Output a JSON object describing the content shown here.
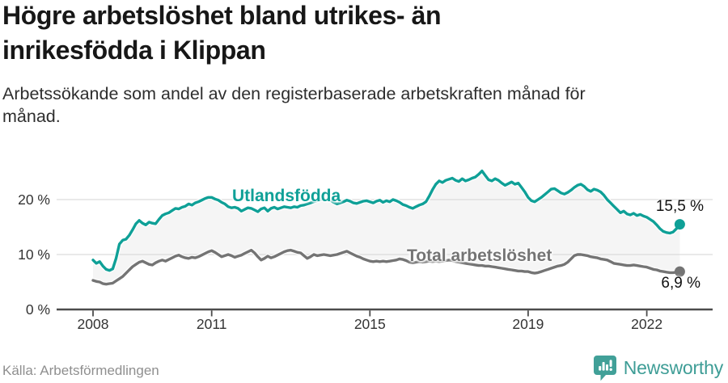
{
  "header": {
    "title": "Högre arbetslöshet bland utrikes- än\ninrikesfödda i Klippan",
    "subtitle": "Arbetssökande som andel av den registerbaserade arbetskraften månad för\nmånad."
  },
  "footer": {
    "source": "Källa: Arbetsförmedlingen",
    "brand": "Newsworthy"
  },
  "chart_data": {
    "type": "line",
    "title": "Högre arbetslöshet bland utrikes- än inrikesfödda i Klippan",
    "subtitle": "Arbetssökande som andel av den registerbaserade arbetskraften månad för månad.",
    "frequency": "monthly",
    "x_start": "2008-01",
    "x_end": "2022-11",
    "x_tick_years": [
      2008,
      2011,
      2015,
      2019,
      2022
    ],
    "x_tick_labels": [
      "2008",
      "2011",
      "2015",
      "2019",
      "2022"
    ],
    "y_tick_labels": [
      "20 %",
      "10 %",
      "0 %"
    ],
    "y_tick_values": [
      20,
      10,
      0
    ],
    "ylim": [
      0,
      27.5
    ],
    "grid": "horizontal-only",
    "legend": "inline-labels",
    "fill_between_color": "#f5f5f5",
    "grid_color": "#dcdcdc",
    "axis_color": "#4c4c4c",
    "series": [
      {
        "name": "Utlandsfödda",
        "color": "#0fa097",
        "end_label": "15,5 %",
        "end_value": 15.5,
        "values": [
          9.0,
          8.4,
          8.7,
          7.9,
          7.3,
          7.1,
          7.4,
          9.3,
          11.9,
          12.6,
          12.8,
          13.5,
          14.5,
          15.6,
          16.2,
          15.7,
          15.4,
          15.9,
          15.7,
          15.6,
          16.4,
          17.1,
          17.4,
          17.6,
          18.0,
          18.4,
          18.3,
          18.6,
          18.8,
          19.2,
          19.0,
          19.4,
          19.6,
          19.9,
          20.2,
          20.4,
          20.4,
          20.1,
          19.9,
          19.5,
          19.2,
          18.7,
          18.5,
          18.6,
          18.4,
          17.9,
          18.2,
          18.5,
          18.4,
          18.1,
          17.8,
          18.3,
          18.5,
          17.9,
          18.4,
          18.6,
          18.3,
          18.5,
          18.7,
          18.6,
          18.5,
          18.7,
          18.6,
          18.9,
          19.0,
          19.2,
          19.4,
          19.6,
          19.8,
          20.0,
          20.2,
          20.0,
          19.9,
          19.5,
          19.2,
          19.4,
          19.6,
          19.9,
          19.7,
          19.4,
          19.3,
          19.5,
          19.7,
          19.8,
          19.6,
          19.4,
          19.7,
          19.9,
          19.5,
          19.8,
          19.6,
          20.0,
          19.8,
          19.5,
          19.1,
          18.9,
          18.6,
          18.4,
          18.7,
          19.0,
          19.2,
          19.6,
          20.6,
          21.8,
          22.8,
          23.4,
          23.1,
          23.5,
          23.7,
          23.9,
          23.5,
          23.3,
          23.8,
          23.4,
          23.6,
          23.9,
          24.1,
          24.6,
          25.2,
          24.4,
          23.6,
          23.4,
          23.8,
          23.5,
          23.0,
          22.6,
          22.9,
          23.2,
          22.8,
          23.0,
          22.2,
          21.4,
          20.4,
          19.8,
          19.6,
          20.0,
          20.4,
          20.9,
          21.4,
          21.9,
          22.0,
          21.6,
          21.2,
          21.0,
          21.3,
          21.7,
          22.2,
          22.6,
          22.8,
          22.4,
          21.8,
          21.5,
          21.9,
          21.7,
          21.4,
          20.8,
          20.0,
          19.4,
          18.8,
          18.2,
          17.6,
          17.9,
          17.4,
          17.2,
          17.5,
          17.1,
          17.3,
          17.0,
          16.8,
          16.4,
          16.0,
          15.4,
          14.7,
          14.2,
          14.0,
          13.9,
          14.1,
          14.7,
          15.5
        ]
      },
      {
        "name": "Total arbetslöshet",
        "color": "#747474",
        "end_label": "6,9 %",
        "end_value": 6.9,
        "values": [
          5.3,
          5.1,
          5.0,
          4.7,
          4.6,
          4.7,
          4.8,
          5.2,
          5.6,
          6.0,
          6.6,
          7.2,
          7.8,
          8.2,
          8.6,
          8.8,
          8.5,
          8.2,
          8.1,
          8.5,
          8.8,
          9.0,
          8.8,
          9.1,
          9.4,
          9.7,
          9.9,
          9.6,
          9.4,
          9.3,
          9.5,
          9.4,
          9.6,
          9.9,
          10.2,
          10.5,
          10.7,
          10.4,
          10.0,
          9.6,
          9.8,
          10.0,
          9.8,
          9.5,
          9.7,
          9.9,
          10.2,
          10.5,
          10.8,
          10.3,
          9.6,
          9.0,
          9.3,
          9.7,
          9.4,
          9.6,
          9.9,
          10.2,
          10.5,
          10.7,
          10.8,
          10.6,
          10.4,
          10.3,
          9.8,
          9.3,
          9.6,
          10.0,
          9.8,
          9.9,
          10.0,
          9.9,
          9.8,
          9.9,
          10.0,
          10.2,
          10.4,
          10.6,
          10.3,
          10.0,
          9.7,
          9.5,
          9.2,
          9.0,
          8.8,
          8.7,
          8.8,
          8.7,
          8.8,
          8.7,
          8.8,
          8.9,
          9.0,
          9.2,
          9.1,
          8.9,
          8.6,
          8.5,
          8.6,
          8.7,
          8.6,
          8.7,
          8.8,
          8.7,
          8.8,
          8.7,
          8.8,
          8.9,
          9.0,
          8.9,
          8.7,
          8.6,
          8.5,
          8.4,
          8.3,
          8.2,
          8.1,
          8.0,
          8.0,
          7.9,
          7.9,
          7.8,
          7.7,
          7.6,
          7.5,
          7.4,
          7.3,
          7.2,
          7.1,
          7.0,
          7.0,
          6.9,
          6.9,
          6.7,
          6.6,
          6.7,
          6.9,
          7.1,
          7.3,
          7.5,
          7.7,
          7.9,
          8.0,
          8.2,
          8.6,
          9.2,
          9.8,
          10.0,
          10.0,
          9.9,
          9.8,
          9.6,
          9.5,
          9.4,
          9.2,
          9.1,
          9.0,
          8.7,
          8.4,
          8.3,
          8.2,
          8.1,
          8.0,
          8.0,
          8.1,
          8.0,
          7.9,
          7.8,
          7.7,
          7.5,
          7.3,
          7.2,
          7.0,
          6.9,
          6.8,
          6.7,
          6.7,
          6.8,
          6.9
        ]
      }
    ]
  },
  "logo": {
    "icon_color": "#41a098",
    "text_color": "#3e9d96"
  }
}
